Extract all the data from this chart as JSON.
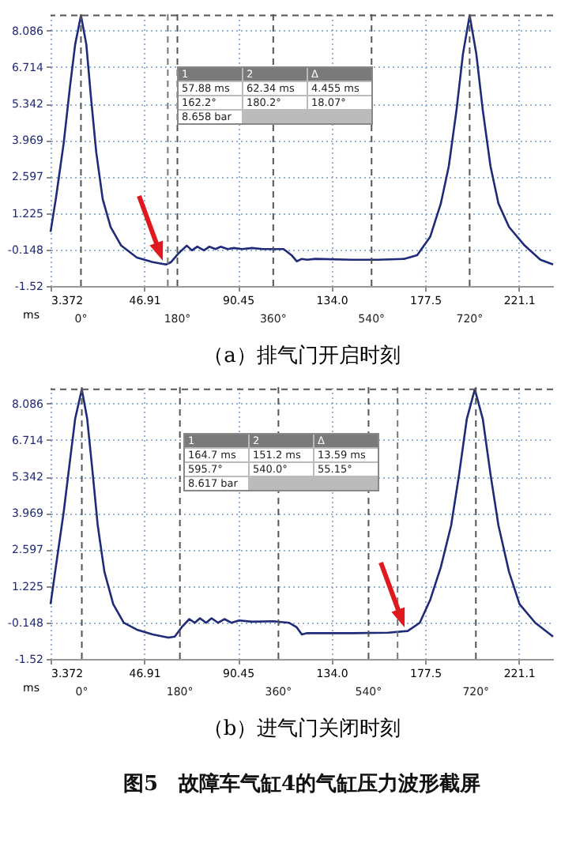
{
  "chart_data": [
    {
      "type": "line",
      "title": "（a）排气门开启时刻",
      "xlabel": "ms",
      "x": [
        3.372,
        5.8,
        9.5,
        12.4,
        14.8,
        17.5,
        20.0,
        22.1,
        24.6,
        27.6,
        31.3,
        36.2,
        43.5,
        50.9,
        57.0,
        59.4,
        63.1,
        66.7,
        69.1,
        71.6,
        74.7,
        77.2,
        80.1,
        82.5,
        85.7,
        88.6,
        92.3,
        97.1,
        102.0,
        106.9,
        111.7,
        115.4,
        117.8,
        120.2,
        122.7,
        126.3,
        143.4,
        155.5,
        167.7,
        173.8,
        179.9,
        184.8,
        188.5,
        192.1,
        195.1,
        198.2,
        201.3,
        204.3,
        207.9,
        211.6,
        216.5,
        223.8,
        231.1,
        237.0
      ],
      "series": [
        {
          "color": "#1f2a78",
          "values": [
            0.52,
            1.75,
            3.87,
            5.98,
            7.56,
            8.658,
            7.56,
            5.62,
            3.51,
            1.75,
            0.7,
            0.0,
            -0.45,
            -0.62,
            -0.71,
            -0.62,
            -0.27,
            0.0,
            -0.18,
            -0.04,
            -0.18,
            -0.04,
            -0.13,
            -0.04,
            -0.13,
            -0.09,
            -0.13,
            -0.09,
            -0.13,
            -0.13,
            -0.13,
            -0.36,
            -0.59,
            -0.5,
            -0.53,
            -0.5,
            -0.53,
            -0.53,
            -0.5,
            -0.36,
            0.34,
            1.58,
            2.98,
            5.1,
            7.21,
            8.658,
            7.21,
            5.1,
            2.98,
            1.58,
            0.7,
            0.0,
            -0.53,
            -0.71
          ]
        }
      ],
      "xlim": [
        3.372,
        237
      ],
      "ylim": [
        -1.52,
        8.7
      ],
      "xticks": [
        3.372,
        46.91,
        90.45,
        {
          "value": 134,
          "label": "134.0"
        },
        177.5,
        221.1
      ],
      "yticks": [
        -1.52,
        -0.148,
        1.225,
        2.597,
        3.969,
        5.342,
        6.714,
        8.086
      ],
      "grid": true,
      "line_style": "solid",
      "ref_lines": [
        {
          "axis": "x",
          "value": 17.5,
          "line_style": "dashed",
          "color": "#555555"
        },
        {
          "axis": "x",
          "value": 57.88,
          "line_style": "dashed",
          "color": "#777777"
        },
        {
          "axis": "x",
          "value": 62.34,
          "line_style": "dashed",
          "color": "#555555"
        },
        {
          "axis": "x",
          "value": 106.9,
          "line_style": "dashed",
          "color": "#555555"
        },
        {
          "axis": "x",
          "value": 152.6,
          "line_style": "dashed",
          "color": "#555555"
        },
        {
          "axis": "x",
          "value": 198.2,
          "line_style": "dashed",
          "color": "#555555"
        },
        {
          "axis": "y",
          "value": 8.658,
          "line_style": "dashed",
          "color": "#555555"
        }
      ],
      "annotations": [
        "1",
        "2",
        "Δ",
        "57.88 ms",
        "62.34 ms",
        "4.455 ms",
        "162.2°",
        "180.2°",
        "18.07°",
        "8.658 bar",
        {
          "text": "0°",
          "x": 17.5,
          "y": -1.52
        },
        {
          "text": "180°",
          "x": 62.34,
          "y": -1.52
        },
        {
          "text": "360°",
          "x": 106.9,
          "y": -1.52
        },
        {
          "text": "540°",
          "x": 152.6,
          "y": -1.52
        },
        {
          "text": "720°",
          "x": 198.2,
          "y": -1.52
        }
      ]
    },
    {
      "type": "line",
      "title": "（b）进气门关闭时刻",
      "subtitle": "图5　故障车气缸4的气缸压力波形截屏",
      "xlabel": "ms",
      "x": [
        3.372,
        5.8,
        9.5,
        12.4,
        14.8,
        17.9,
        20.4,
        22.8,
        25.3,
        28.4,
        32.5,
        37.4,
        43.5,
        50.9,
        58.2,
        61.1,
        64.3,
        67.9,
        70.4,
        72.8,
        75.7,
        78.2,
        81.3,
        84.2,
        87.4,
        91.0,
        97.1,
        106.9,
        114.2,
        117.8,
        120.2,
        122.7,
        126.3,
        143.4,
        160.4,
        169.4,
        175.0,
        179.9,
        184.8,
        189.6,
        193.3,
        196.9,
        200.6,
        204.3,
        207.9,
        211.6,
        216.5,
        221.4,
        228.7,
        237.0
      ],
      "series": [
        {
          "color": "#1f2a78",
          "values": [
            0.54,
            1.93,
            4.02,
            5.94,
            7.51,
            8.617,
            7.51,
            5.59,
            3.5,
            1.76,
            0.54,
            -0.16,
            -0.42,
            -0.6,
            -0.72,
            -0.68,
            -0.33,
            -0.02,
            -0.16,
            0.01,
            -0.16,
            0.01,
            -0.16,
            -0.02,
            -0.16,
            -0.07,
            -0.12,
            -0.1,
            -0.16,
            -0.33,
            -0.6,
            -0.55,
            -0.55,
            -0.55,
            -0.53,
            -0.47,
            -0.16,
            0.71,
            1.93,
            3.5,
            5.42,
            7.51,
            8.617,
            7.51,
            5.42,
            3.5,
            1.76,
            0.54,
            -0.16,
            -0.68
          ]
        }
      ],
      "xlim": [
        3.372,
        237
      ],
      "ylim": [
        -1.52,
        8.7
      ],
      "xticks": [
        3.372,
        46.91,
        90.45,
        {
          "value": 134,
          "label": "134.0"
        },
        177.5,
        221.1
      ],
      "yticks": [
        -1.52,
        -0.148,
        1.225,
        2.597,
        3.969,
        5.342,
        6.714,
        8.086
      ],
      "grid": true,
      "line_style": "solid",
      "ref_lines": [
        {
          "axis": "x",
          "value": 17.9,
          "line_style": "dashed",
          "color": "#555555"
        },
        {
          "axis": "x",
          "value": 63.5,
          "line_style": "dashed",
          "color": "#555555"
        },
        {
          "axis": "x",
          "value": 109.3,
          "line_style": "dashed",
          "color": "#555555"
        },
        {
          "axis": "x",
          "value": 151.2,
          "line_style": "dashed",
          "color": "#555555"
        },
        {
          "axis": "x",
          "value": 164.7,
          "line_style": "dashed",
          "color": "#777777"
        },
        {
          "axis": "x",
          "value": 201.1,
          "line_style": "dashed",
          "color": "#555555"
        },
        {
          "axis": "y",
          "value": 8.617,
          "line_style": "dashed",
          "color": "#555555"
        }
      ],
      "annotations": [
        "1",
        "2",
        "Δ",
        "164.7 ms",
        "151.2 ms",
        "13.59 ms",
        "595.7°",
        "540.0°",
        "55.15°",
        "8.617 bar",
        {
          "text": "0°",
          "x": 17.9,
          "y": -1.52
        },
        {
          "text": "180°",
          "x": 63.5,
          "y": -1.52
        },
        {
          "text": "360°",
          "x": 109.3,
          "y": -1.52
        },
        {
          "text": "540°",
          "x": 151.2,
          "y": -1.52
        },
        {
          "text": "720°",
          "x": 201.1,
          "y": -1.52
        }
      ]
    }
  ]
}
